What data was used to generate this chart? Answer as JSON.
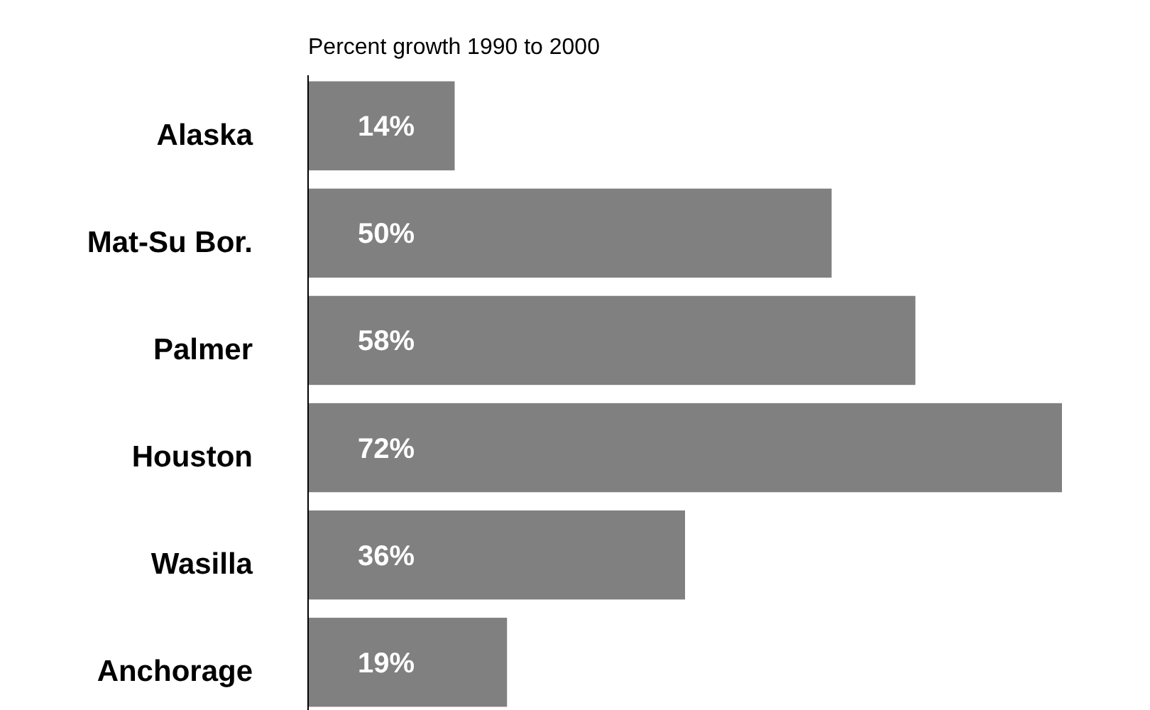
{
  "chart_data": {
    "type": "bar",
    "orientation": "horizontal",
    "title": "Percent growth 1990 to 2000",
    "categories": [
      "Alaska",
      "Mat-Su Bor.",
      "Palmer",
      "Houston",
      "Wasilla",
      "Anchorage"
    ],
    "values": [
      14,
      50,
      58,
      72,
      36,
      19
    ],
    "value_labels": [
      "14%",
      "50%",
      "58%",
      "72%",
      "36%",
      "19%"
    ],
    "color": "#808080",
    "xlim": [
      0,
      72
    ]
  }
}
